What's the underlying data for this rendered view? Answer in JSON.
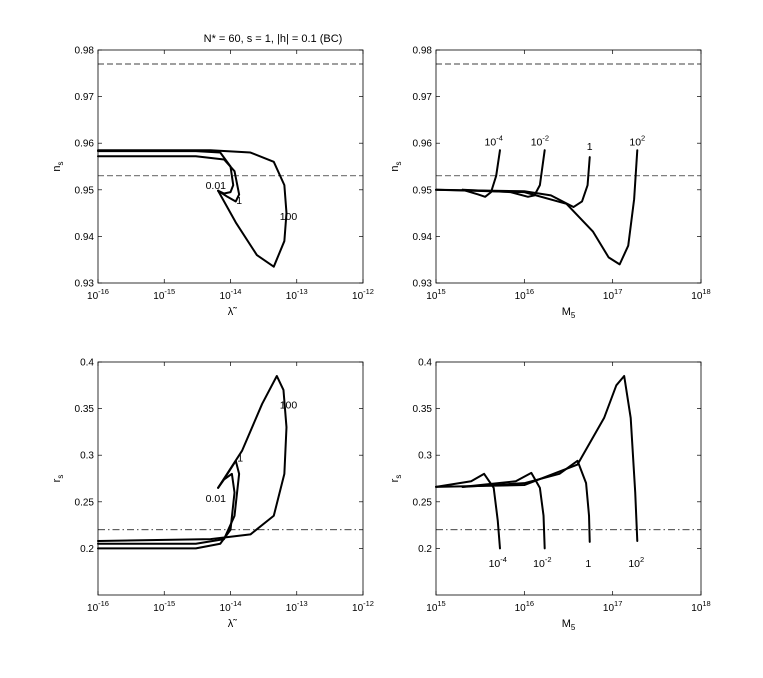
{
  "figure_title": "N* = 60,  s = 1,  |h| = 0.1 (BC)",
  "chart_data": [
    {
      "id": "ns-vs-lambda",
      "type": "line",
      "xlabel": "λ̃",
      "ylabel": "n_s",
      "x_scale": "log",
      "xlim": [
        1e-16,
        1e-12
      ],
      "ylim": [
        0.93,
        0.98
      ],
      "x_ticks": [
        "10^-16",
        "10^-15",
        "10^-14",
        "10^-13",
        "10^-12"
      ],
      "y_ticks": [
        "0.93",
        "0.94",
        "0.95",
        "0.96",
        "0.97",
        "0.98"
      ],
      "reference_lines": [
        {
          "y": 0.977,
          "style": "dashed"
        },
        {
          "y": 0.953,
          "style": "dashed"
        }
      ],
      "series": [
        {
          "x": [
            1e-16,
            3e-15,
            7e-15,
            1e-14,
            1.1e-14,
            1e-14,
            8e-15,
            6.5e-15
          ],
          "y": [
            0.9583,
            0.9583,
            0.958,
            0.955,
            0.951,
            0.9495,
            0.9492,
            0.9498
          ],
          "label": "0.01",
          "label_at": [
            6e-15,
            0.9502
          ]
        },
        {
          "x": [
            1e-16,
            3e-15,
            8e-15,
            1.15e-14,
            1.35e-14,
            1.2e-14,
            9e-15,
            6.5e-15
          ],
          "y": [
            0.9572,
            0.9572,
            0.9565,
            0.954,
            0.949,
            0.9475,
            0.9485,
            0.9498
          ],
          "label": "1",
          "label_at": [
            1.35e-14,
            0.947
          ]
        },
        {
          "x": [
            1e-16,
            5e-15,
            2e-14,
            4.5e-14,
            6.5e-14,
            7e-14,
            6.5e-14,
            4.5e-14,
            2.5e-14,
            1.2e-14,
            6.5e-15
          ],
          "y": [
            0.9585,
            0.9585,
            0.958,
            0.956,
            0.951,
            0.945,
            0.939,
            0.9335,
            0.936,
            0.943,
            0.9498
          ],
          "label": "100",
          "label_at": [
            7.5e-14,
            0.9435
          ]
        }
      ]
    },
    {
      "id": "ns-vs-m5",
      "type": "line",
      "xlabel": "M_5",
      "ylabel": "n_s",
      "x_scale": "log",
      "xlim": [
        1000000000000000.0,
        1e+18
      ],
      "ylim": [
        0.93,
        0.98
      ],
      "x_ticks": [
        "10^15",
        "10^16",
        "10^17",
        "10^18"
      ],
      "y_ticks": [
        "0.93",
        "0.94",
        "0.95",
        "0.96",
        "0.97",
        "0.98"
      ],
      "reference_lines": [
        {
          "y": 0.977,
          "style": "dashed"
        },
        {
          "y": 0.953,
          "style": "dashed"
        }
      ],
      "series": [
        {
          "x": [
            2000000000000000.0,
            3000000000000000.0,
            3600000000000000.0,
            4200000000000000.0,
            4800000000000000.0,
            5300000000000000.0
          ],
          "y": [
            0.95,
            0.949,
            0.9485,
            0.9495,
            0.953,
            0.9585
          ],
          "label": "10^-4",
          "label_at": [
            4500000000000000.0,
            0.9595
          ]
        },
        {
          "x": [
            2000000000000000.0,
            7000000000000000.0,
            1.1e+16,
            1.3e+16,
            1.5e+16,
            1.7e+16
          ],
          "y": [
            0.95,
            0.9495,
            0.9485,
            0.9488,
            0.951,
            0.9585
          ],
          "label": "10^-2",
          "label_at": [
            1.5e+16,
            0.9595
          ]
        },
        {
          "x": [
            1000000000000000.0,
            1e+16,
            2e+16,
            3.6e+16,
            4.5e+16,
            5.2e+16,
            5.5e+16
          ],
          "y": [
            0.95,
            0.9497,
            0.9488,
            0.9463,
            0.9475,
            0.951,
            0.957
          ],
          "label": "1",
          "label_at": [
            5.5e+16,
            0.9585
          ]
        },
        {
          "x": [
            1000000000000000.0,
            1e+16,
            3e+16,
            6e+16,
            9e+16,
            1.2e+17,
            1.5e+17,
            1.75e+17,
            1.9e+17
          ],
          "y": [
            0.95,
            0.9495,
            0.947,
            0.941,
            0.9355,
            0.934,
            0.938,
            0.948,
            0.9585
          ],
          "label": "10^2",
          "label_at": [
            1.9e+17,
            0.9595
          ]
        }
      ]
    },
    {
      "id": "rs-vs-lambda",
      "type": "line",
      "xlabel": "λ̃",
      "ylabel": "r_s",
      "x_scale": "log",
      "xlim": [
        1e-16,
        1e-12
      ],
      "ylim": [
        0.15,
        0.4
      ],
      "x_ticks": [
        "10^-16",
        "10^-15",
        "10^-14",
        "10^-13",
        "10^-12"
      ],
      "y_ticks": [
        "0.2",
        "0.25",
        "0.3",
        "0.35",
        "0.4"
      ],
      "reference_lines": [
        {
          "y": 0.22,
          "style": "dashdot"
        }
      ],
      "series": [
        {
          "x": [
            1e-16,
            3e-15,
            7e-15,
            1e-14,
            1.15e-14,
            1.05e-14,
            8e-15,
            6.5e-15
          ],
          "y": [
            0.2,
            0.2,
            0.205,
            0.22,
            0.26,
            0.28,
            0.274,
            0.265
          ],
          "label": "0.01",
          "label_at": [
            6e-15,
            0.25
          ]
        },
        {
          "x": [
            1e-16,
            3e-15,
            8e-15,
            1.15e-14,
            1.35e-14,
            1.2e-14,
            9e-15,
            6.5e-15
          ],
          "y": [
            0.205,
            0.205,
            0.21,
            0.235,
            0.28,
            0.294,
            0.28,
            0.265
          ],
          "label": "1",
          "label_at": [
            1.4e-14,
            0.293
          ]
        },
        {
          "x": [
            1e-16,
            5e-15,
            2e-14,
            4.5e-14,
            6.5e-14,
            7e-14,
            6.3e-14,
            5e-14,
            3e-14,
            1.5e-14,
            6.5e-15
          ],
          "y": [
            0.208,
            0.21,
            0.215,
            0.235,
            0.28,
            0.33,
            0.37,
            0.385,
            0.355,
            0.305,
            0.265
          ],
          "label": "100",
          "label_at": [
            7.5e-14,
            0.35
          ]
        }
      ]
    },
    {
      "id": "rs-vs-m5",
      "type": "line",
      "xlabel": "M_5",
      "ylabel": "r_s",
      "x_scale": "log",
      "xlim": [
        1000000000000000.0,
        1e+18
      ],
      "ylim": [
        0.15,
        0.4
      ],
      "x_ticks": [
        "10^15",
        "10^16",
        "10^17",
        "10^18"
      ],
      "y_ticks": [
        "0.2",
        "0.25",
        "0.3",
        "0.35",
        "0.4"
      ],
      "reference_lines": [
        {
          "y": 0.22,
          "style": "dashdot"
        }
      ],
      "series": [
        {
          "x": [
            1000000000000000.0,
            2500000000000000.0,
            3500000000000000.0,
            4500000000000000.0,
            5000000000000000.0,
            5300000000000000.0
          ],
          "y": [
            0.266,
            0.272,
            0.28,
            0.265,
            0.23,
            0.2
          ],
          "label": "10^-4",
          "label_at": [
            5000000000000000.0,
            0.18
          ]
        },
        {
          "x": [
            2000000000000000.0,
            8000000000000000.0,
            1.2e+16,
            1.5e+16,
            1.65e+16,
            1.7e+16
          ],
          "y": [
            0.266,
            0.272,
            0.281,
            0.265,
            0.235,
            0.2
          ],
          "label": "10^-2",
          "label_at": [
            1.6e+16,
            0.18
          ]
        },
        {
          "x": [
            2000000000000000.0,
            1e+16,
            2.5e+16,
            4e+16,
            5e+16,
            5.4e+16,
            5.5e+16
          ],
          "y": [
            0.266,
            0.27,
            0.28,
            0.294,
            0.27,
            0.235,
            0.207
          ],
          "label": "1",
          "label_at": [
            5.3e+16,
            0.18
          ]
        },
        {
          "x": [
            1000000000000000.0,
            1e+16,
            4e+16,
            8e+16,
            1.1e+17,
            1.35e+17,
            1.6e+17,
            1.8e+17,
            1.9e+17
          ],
          "y": [
            0.266,
            0.268,
            0.29,
            0.34,
            0.375,
            0.385,
            0.34,
            0.26,
            0.208
          ],
          "label": "10^2",
          "label_at": [
            1.85e+17,
            0.18
          ]
        }
      ]
    }
  ]
}
